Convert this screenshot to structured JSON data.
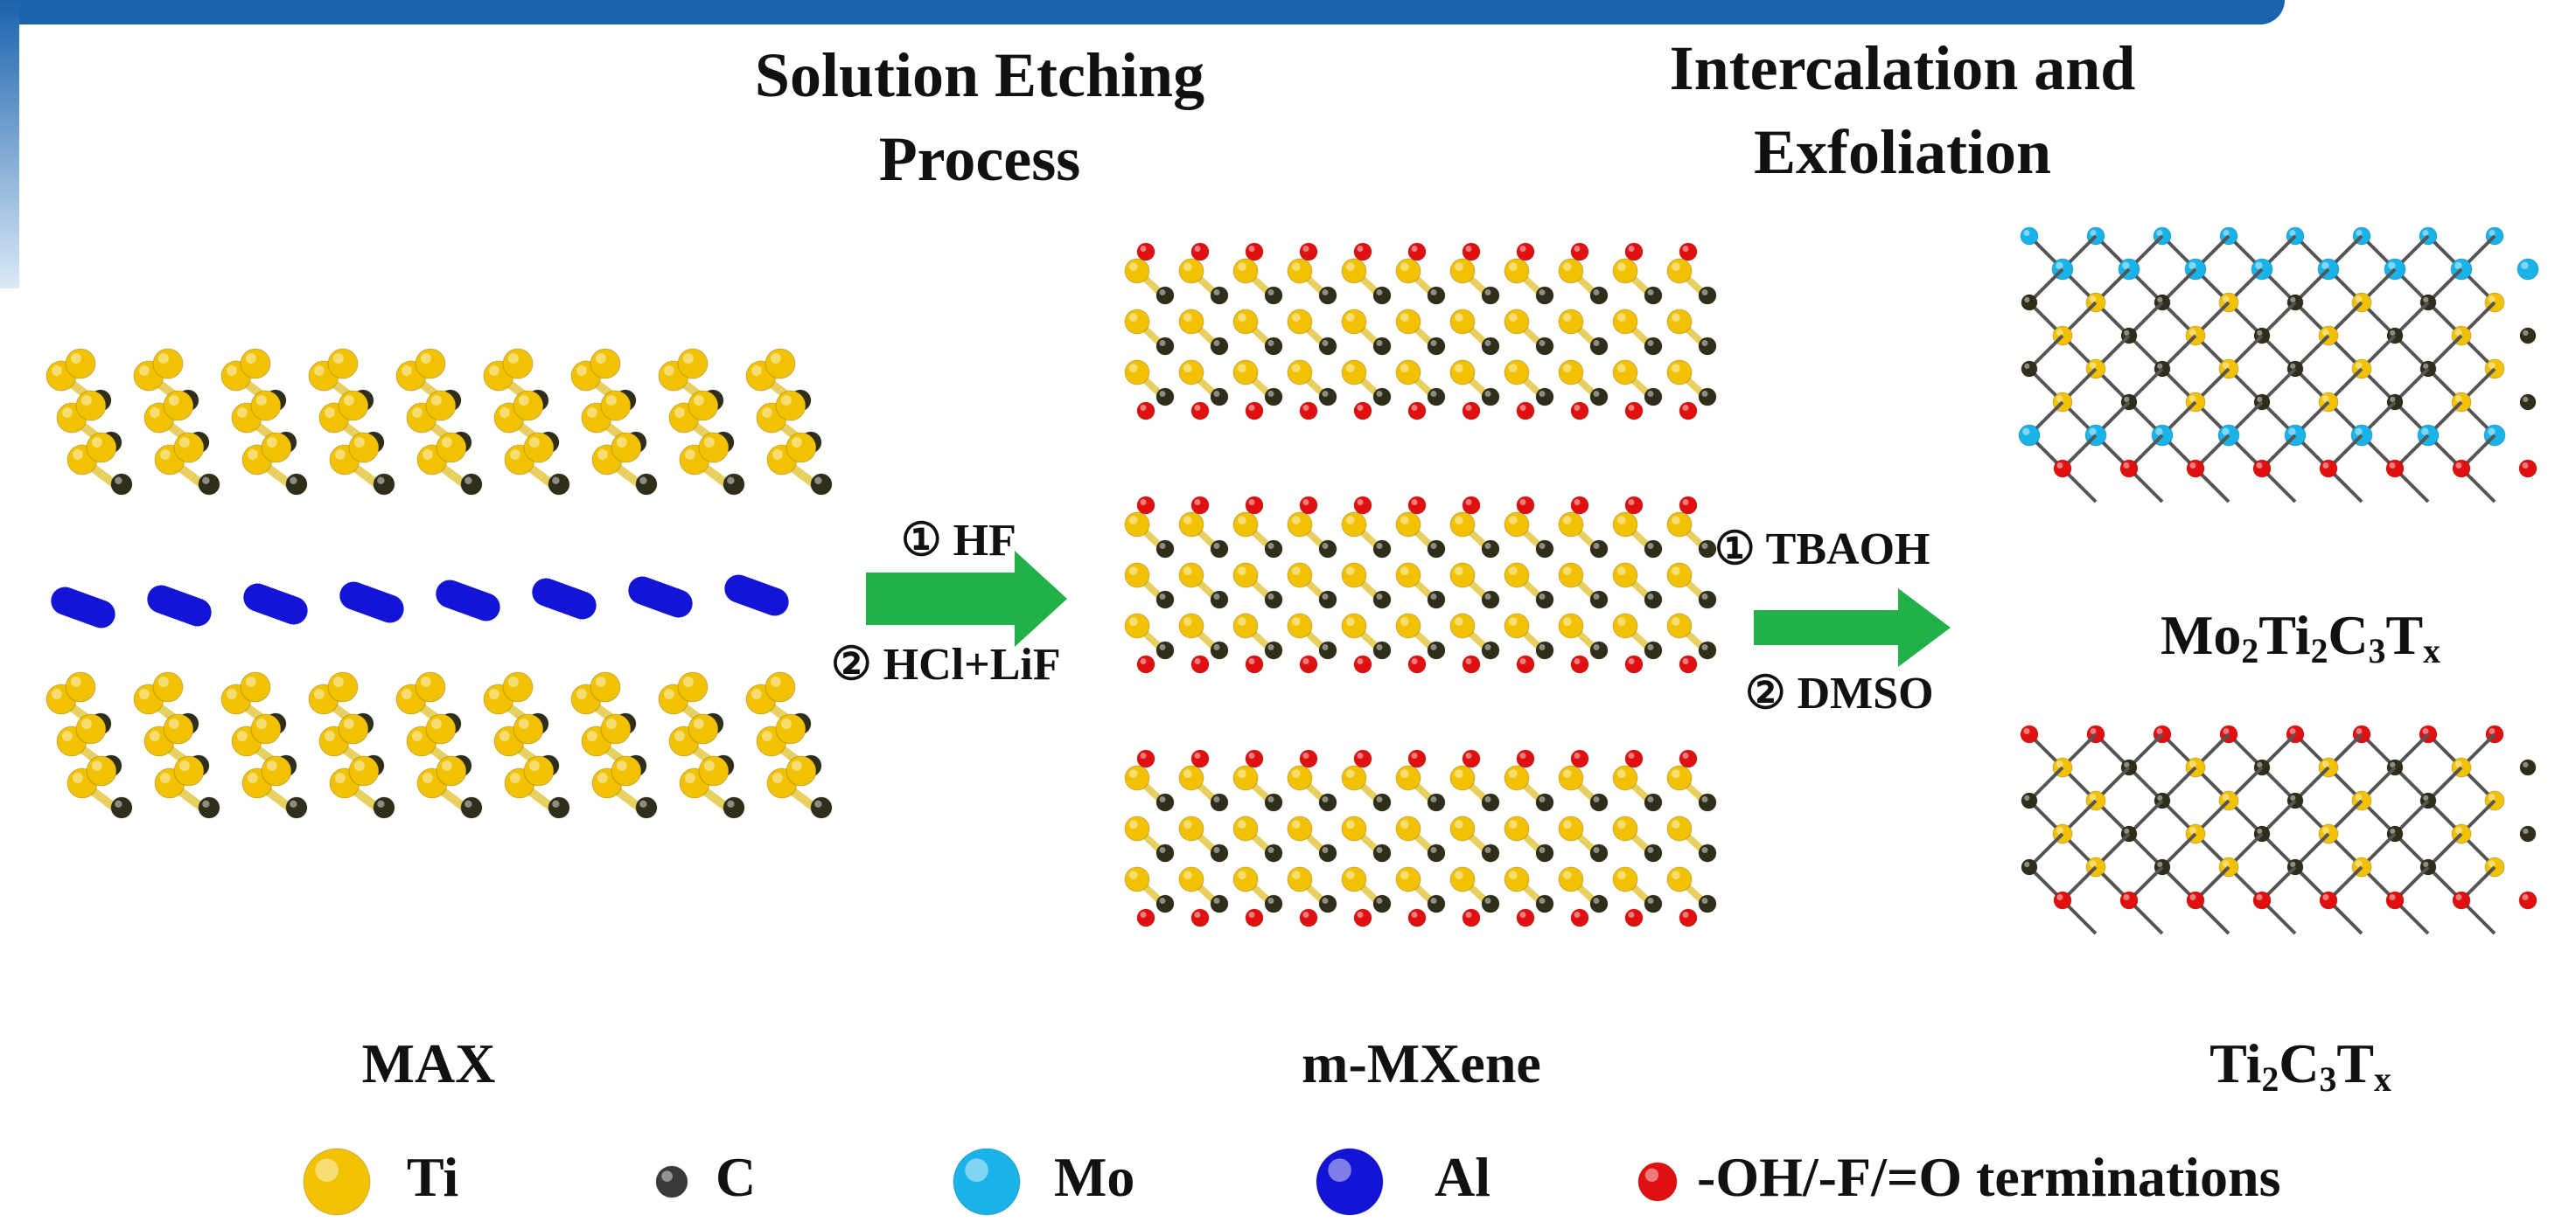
{
  "headings": {
    "etching": [
      "Solution Etching",
      "Process"
    ],
    "intercalation": [
      "Intercalation and",
      "Exfoliation"
    ]
  },
  "step1": {
    "reagent1": "① HF",
    "reagent2": "② HCl+LiF"
  },
  "step2": {
    "reagent1": "① TBAOH",
    "reagent2": "② DMSO"
  },
  "labels": {
    "max": "MAX",
    "mxene": "m-MXene",
    "mo2ti2": {
      "parts": [
        "Mo",
        "2",
        "Ti",
        "2",
        "C",
        "3",
        "T",
        "x"
      ]
    },
    "ti2c3": {
      "parts": [
        "Ti",
        "2",
        "C",
        "3",
        "T",
        "x"
      ]
    }
  },
  "legend": [
    {
      "symbol": "Ti",
      "color": "#f2c200"
    },
    {
      "symbol": "C",
      "color": "#3a3a3a"
    },
    {
      "symbol": "Mo",
      "color": "#19b3ea"
    },
    {
      "symbol": "Al",
      "color": "#1414d6"
    },
    {
      "symbol": "-OH/-F/=O terminations",
      "color": "#e01010"
    }
  ],
  "colors": {
    "ti": "#f2c200",
    "c": "#2e2e1a",
    "mo": "#19b3ea",
    "al": "#1414d6",
    "term": "#e01010",
    "arrow": "#22b04a",
    "banner": "#1a63ad"
  }
}
